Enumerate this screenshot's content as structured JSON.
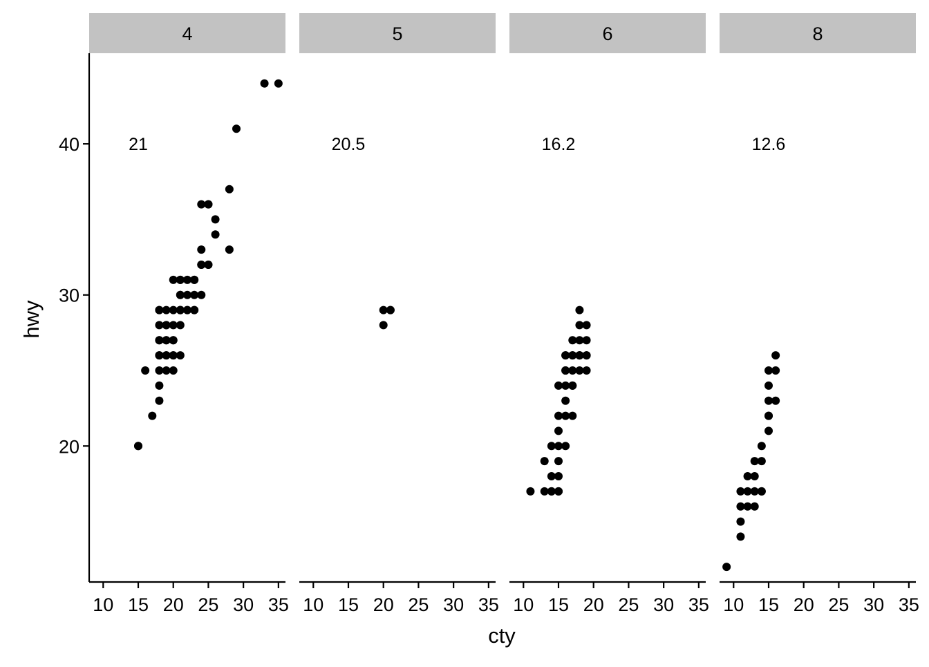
{
  "chart_data": {
    "type": "scatter",
    "facet_by": "cyl",
    "facets": [
      {
        "label": "4",
        "annotation": "21",
        "points": [
          [
            18,
            29
          ],
          [
            21,
            29
          ],
          [
            20,
            31
          ],
          [
            21,
            30
          ],
          [
            18,
            26
          ],
          [
            18,
            25
          ],
          [
            21,
            28
          ],
          [
            21,
            29
          ],
          [
            20,
            27
          ],
          [
            19,
            26
          ],
          [
            22,
            29
          ],
          [
            22,
            31
          ],
          [
            18,
            29
          ],
          [
            18,
            24
          ],
          [
            19,
            29
          ],
          [
            17,
            22
          ],
          [
            18,
            28
          ],
          [
            20,
            29
          ],
          [
            15,
            20
          ],
          [
            15,
            20
          ],
          [
            16,
            25
          ],
          [
            22,
            30
          ],
          [
            24,
            33
          ],
          [
            35,
            44
          ],
          [
            29,
            41
          ],
          [
            24,
            32
          ],
          [
            33,
            44
          ],
          [
            24,
            30
          ],
          [
            28,
            37
          ],
          [
            26,
            35
          ],
          [
            28,
            33
          ],
          [
            26,
            34
          ],
          [
            25,
            36
          ],
          [
            25,
            36
          ],
          [
            24,
            36
          ],
          [
            21,
            29
          ],
          [
            19,
            26
          ],
          [
            19,
            27
          ],
          [
            20,
            27
          ],
          [
            19,
            28
          ],
          [
            21,
            31
          ],
          [
            20,
            28
          ],
          [
            18,
            26
          ],
          [
            18,
            27
          ],
          [
            19,
            25
          ],
          [
            20,
            25
          ],
          [
            18,
            23
          ],
          [
            25,
            32
          ],
          [
            22,
            29
          ],
          [
            23,
            29
          ],
          [
            23,
            31
          ],
          [
            23,
            31
          ],
          [
            24,
            32
          ],
          [
            20,
            26
          ],
          [
            21,
            26
          ],
          [
            20,
            26
          ],
          [
            23,
            30
          ],
          [
            23,
            29
          ],
          [
            25,
            32
          ],
          [
            19,
            27
          ],
          [
            21,
            29
          ],
          [
            21,
            31
          ],
          [
            21,
            30
          ],
          [
            18,
            27
          ],
          [
            19,
            28
          ]
        ],
        "ylim_data": [
          12,
          44
        ]
      },
      {
        "label": "5",
        "annotation": "20.5",
        "points": [
          [
            21,
            29
          ],
          [
            21,
            29
          ],
          [
            20,
            28
          ],
          [
            20,
            29
          ]
        ]
      },
      {
        "label": "6",
        "annotation": "16.2",
        "points": [
          [
            16,
            26
          ],
          [
            18,
            26
          ],
          [
            18,
            27
          ],
          [
            16,
            25
          ],
          [
            17,
            25
          ],
          [
            17,
            24
          ],
          [
            15,
            17
          ],
          [
            14,
            18
          ],
          [
            13,
            17
          ],
          [
            11,
            17
          ],
          [
            16,
            24
          ],
          [
            17,
            26
          ],
          [
            16,
            25
          ],
          [
            19,
            28
          ],
          [
            18,
            29
          ],
          [
            18,
            26
          ],
          [
            17,
            26
          ],
          [
            16,
            22
          ],
          [
            15,
            20
          ],
          [
            15,
            19
          ],
          [
            16,
            20
          ],
          [
            15,
            22
          ],
          [
            15,
            18
          ],
          [
            15,
            17
          ],
          [
            14,
            17
          ],
          [
            13,
            19
          ],
          [
            14,
            20
          ],
          [
            15,
            21
          ],
          [
            16,
            23
          ],
          [
            17,
            22
          ],
          [
            15,
            24
          ],
          [
            18,
            25
          ],
          [
            19,
            26
          ],
          [
            19,
            27
          ],
          [
            17,
            27
          ],
          [
            18,
            28
          ],
          [
            19,
            25
          ],
          [
            16,
            26
          ],
          [
            17,
            24
          ],
          [
            14,
            17
          ],
          [
            18,
            26
          ],
          [
            19,
            26
          ]
        ]
      },
      {
        "label": "8",
        "annotation": "12.6",
        "points": [
          [
            16,
            26
          ],
          [
            15,
            25
          ],
          [
            16,
            25
          ],
          [
            15,
            24
          ],
          [
            15,
            23
          ],
          [
            16,
            23
          ],
          [
            15,
            22
          ],
          [
            15,
            21
          ],
          [
            14,
            20
          ],
          [
            13,
            19
          ],
          [
            14,
            19
          ],
          [
            12,
            18
          ],
          [
            13,
            18
          ],
          [
            11,
            17
          ],
          [
            12,
            17
          ],
          [
            13,
            17
          ],
          [
            14,
            17
          ],
          [
            11,
            16
          ],
          [
            12,
            16
          ],
          [
            13,
            16
          ],
          [
            11,
            15
          ],
          [
            11,
            14
          ],
          [
            9,
            12
          ],
          [
            15,
            22
          ],
          [
            14,
            17
          ]
        ]
      }
    ],
    "xlabel": "cty",
    "ylabel": "hwy",
    "xlim": [
      8,
      36
    ],
    "ylim": [
      11,
      46
    ],
    "xticks": [
      10,
      15,
      20,
      25,
      30,
      35
    ],
    "yticks": [
      20,
      30,
      40
    ],
    "annotation_y": 40,
    "annotation_x": 15,
    "grid": false,
    "legend": "none"
  },
  "colors": {
    "strip_background": "#c2c2c2",
    "point": "#000000",
    "axis": "#000000"
  }
}
